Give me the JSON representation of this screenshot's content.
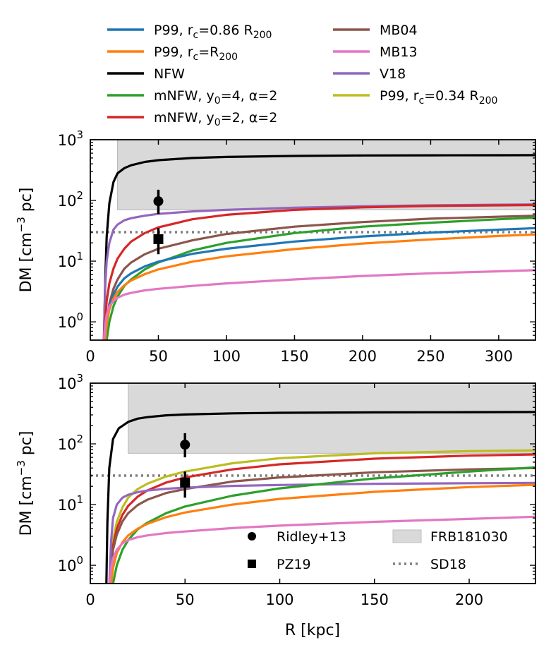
{
  "legend_top": [
    {
      "name": "P99, r_c=0.86 R_200",
      "color": "#1f77b4",
      "base": "P99, r",
      "sub": "c",
      "mid": "=0.86 R",
      "sub2": "200"
    },
    {
      "name": "P99, r_c=R_200",
      "color": "#ff7f0e",
      "base": "P99, r",
      "sub": "c",
      "mid": "=R",
      "sub2": "200"
    },
    {
      "name": "NFW",
      "color": "#000000",
      "base": "NFW"
    },
    {
      "name": "mNFW, y_0=4, α=2",
      "color": "#2ca02c",
      "base": "mNFW, y",
      "sub": "0",
      "mid": "=4, α=2"
    },
    {
      "name": "mNFW, y_0=2, α=2",
      "color": "#d62728",
      "base": "mNFW, y",
      "sub": "0",
      "mid": "=2, α=2"
    },
    {
      "name": "MB04",
      "color": "#8c564b",
      "base": "MB04"
    },
    {
      "name": "MB13",
      "color": "#e377c2",
      "base": "MB13"
    },
    {
      "name": "V18",
      "color": "#9467bd",
      "base": "V18"
    },
    {
      "name": "P99, r_c=0.34 R_200",
      "color": "#bcbd22",
      "base": "P99, r",
      "sub": "c",
      "mid": "=0.34 R",
      "sub2": "200"
    }
  ],
  "legend_bottom": {
    "ridley": "Ridley+13",
    "pz19": "PZ19",
    "frb": "FRB181030",
    "sd18": "SD18"
  },
  "axes": {
    "ylabel_pre": "DM [cm",
    "ylabel_sup": "−3",
    "ylabel_post": " pc]",
    "xlabel": "R [kpc]",
    "y_tick_labels": [
      {
        "base": "10",
        "exp": "0"
      },
      {
        "base": "10",
        "exp": "1"
      },
      {
        "base": "10",
        "exp": "2"
      },
      {
        "base": "10",
        "exp": "3"
      }
    ]
  },
  "chart_data": [
    {
      "type": "line",
      "panel": "top",
      "xlim": [
        0,
        327
      ],
      "ylim": [
        0.5,
        1000
      ],
      "yscale": "log",
      "xticks": [
        0,
        50,
        100,
        150,
        200,
        250,
        300
      ],
      "xlabel": "",
      "ylabel": "DM [cm^-3 pc]",
      "frb_band": {
        "x_start": 20,
        "y_low": 70,
        "y_high": 1000
      },
      "sd18_level": 30,
      "observations": [
        {
          "name": "Ridley+13",
          "marker": "circle",
          "x": 50,
          "y": 97,
          "yerr_low": 60,
          "yerr_high": 150
        },
        {
          "name": "PZ19",
          "marker": "square",
          "x": 50,
          "y": 23,
          "yerr_low": 13,
          "yerr_high": 35
        }
      ],
      "series": [
        {
          "name": "NFW",
          "color": "#000000",
          "x": [
            10,
            11,
            12,
            14,
            17,
            20,
            25,
            30,
            40,
            50,
            75,
            100,
            150,
            200,
            250,
            300,
            327
          ],
          "y": [
            0.5,
            5,
            25,
            90,
            200,
            280,
            340,
            380,
            430,
            460,
            500,
            520,
            540,
            550,
            553,
            555,
            556
          ]
        },
        {
          "name": "V18",
          "color": "#9467bd",
          "x": [
            10,
            11,
            12,
            14,
            17,
            20,
            25,
            30,
            40,
            50,
            75,
            100,
            150,
            200,
            250,
            300,
            327
          ],
          "y": [
            0.5,
            4,
            10,
            20,
            33,
            40,
            47,
            51,
            56,
            60,
            66,
            70,
            76,
            80,
            83,
            85,
            86
          ]
        },
        {
          "name": "mNFW, y_0=2, α=2",
          "color": "#d62728",
          "x": [
            10,
            11,
            12,
            14,
            17,
            20,
            25,
            30,
            40,
            50,
            75,
            100,
            150,
            200,
            250,
            300,
            327
          ],
          "y": [
            0.5,
            1.1,
            2.2,
            4.3,
            7.5,
            11,
            16,
            21,
            29,
            36,
            49,
            58,
            70,
            77,
            81,
            83,
            84
          ]
        },
        {
          "name": "MB04",
          "color": "#8c564b",
          "x": [
            11,
            12,
            14,
            17,
            20,
            25,
            30,
            40,
            50,
            75,
            100,
            150,
            200,
            250,
            300,
            327
          ],
          "y": [
            0.5,
            1,
            2,
            3.5,
            5,
            7.5,
            9.5,
            13,
            16,
            22,
            28,
            37,
            44,
            50,
            54,
            56
          ]
        },
        {
          "name": "mNFW, y_0=4, α=2",
          "color": "#2ca02c",
          "x": [
            12,
            14,
            17,
            20,
            25,
            30,
            40,
            50,
            75,
            100,
            150,
            200,
            250,
            300,
            327
          ],
          "y": [
            0.5,
            1,
            1.8,
            2.6,
            3.9,
            5,
            7.3,
            9.5,
            15,
            20,
            29,
            37,
            43,
            49,
            52
          ]
        },
        {
          "name": "P99, r_c=0.86 R_200",
          "color": "#1f77b4",
          "x": [
            11,
            12,
            14,
            17,
            20,
            25,
            30,
            40,
            50,
            75,
            100,
            150,
            200,
            250,
            300,
            327
          ],
          "y": [
            0.5,
            1,
            1.8,
            2.8,
            3.8,
            5.2,
            6.3,
            8.2,
            9.8,
            13.2,
            16,
            21,
            25.5,
            29.5,
            33,
            35
          ]
        },
        {
          "name": "P99, r_c=R_200",
          "color": "#ff7f0e",
          "x": [
            11,
            12,
            14,
            17,
            20,
            25,
            30,
            40,
            50,
            75,
            100,
            150,
            200,
            250,
            300,
            327
          ],
          "y": [
            0.5,
            0.9,
            1.6,
            2.4,
            3.1,
            4,
            4.8,
            6.1,
            7.3,
            9.8,
            12,
            15.8,
            19.5,
            22.8,
            26,
            27.5
          ]
        },
        {
          "name": "MB13",
          "color": "#e377c2",
          "x": [
            10,
            11,
            12,
            14,
            17,
            20,
            25,
            30,
            40,
            50,
            75,
            100,
            150,
            200,
            250,
            300,
            327
          ],
          "y": [
            0.5,
            0.9,
            1.3,
            1.8,
            2.2,
            2.5,
            2.8,
            3.0,
            3.3,
            3.5,
            3.9,
            4.3,
            5.0,
            5.7,
            6.3,
            6.8,
            7.1
          ]
        }
      ]
    },
    {
      "type": "line",
      "panel": "bottom",
      "xlim": [
        0,
        235
      ],
      "ylim": [
        0.5,
        1000
      ],
      "yscale": "log",
      "xticks": [
        0,
        50,
        100,
        150,
        200
      ],
      "xlabel": "R [kpc]",
      "ylabel": "DM [cm^-3 pc]",
      "frb_band": {
        "x_start": 20,
        "y_low": 70,
        "y_high": 1000
      },
      "sd18_level": 30,
      "observations": [
        {
          "name": "Ridley+13",
          "marker": "circle",
          "x": 50,
          "y": 97,
          "yerr_low": 60,
          "yerr_high": 150
        },
        {
          "name": "PZ19",
          "marker": "square",
          "x": 50,
          "y": 23,
          "yerr_low": 13,
          "yerr_high": 35
        }
      ],
      "series": [
        {
          "name": "NFW",
          "color": "#000000",
          "x": [
            8.5,
            9,
            10,
            12,
            15,
            20,
            25,
            30,
            40,
            50,
            75,
            100,
            150,
            200,
            235
          ],
          "y": [
            0.5,
            5,
            40,
            120,
            180,
            230,
            260,
            275,
            295,
            305,
            318,
            325,
            330,
            333,
            335
          ]
        },
        {
          "name": "P99, r_c=0.34 R_200",
          "color": "#bcbd22",
          "x": [
            10,
            11,
            12,
            14,
            17,
            20,
            25,
            30,
            40,
            50,
            75,
            100,
            150,
            200,
            235
          ],
          "y": [
            0.5,
            1.3,
            2.6,
            5.2,
            9,
            13,
            18,
            22,
            29,
            35,
            48,
            58,
            70,
            76,
            78
          ]
        },
        {
          "name": "mNFW, y_0=2, α=2",
          "color": "#d62728",
          "x": [
            10,
            11,
            12,
            14,
            17,
            20,
            25,
            30,
            40,
            50,
            75,
            100,
            150,
            200,
            235
          ],
          "y": [
            0.5,
            1.1,
            2.1,
            4,
            6.8,
            9.5,
            13.5,
            17,
            23,
            28,
            38,
            46,
            57,
            64,
            67
          ]
        },
        {
          "name": "MB04",
          "color": "#8c564b",
          "x": [
            10,
            11,
            12,
            14,
            17,
            20,
            25,
            30,
            40,
            50,
            75,
            100,
            150,
            200,
            235
          ],
          "y": [
            0.5,
            1,
            1.8,
            3.2,
            5.3,
            7.2,
            9.8,
            12,
            15.5,
            18,
            24,
            28,
            34,
            38,
            40
          ]
        },
        {
          "name": "V18",
          "color": "#9467bd",
          "x": [
            10,
            11,
            12,
            14,
            17,
            20,
            25,
            30,
            40,
            50,
            75,
            100,
            150,
            200,
            235
          ],
          "y": [
            0.5,
            2.5,
            6,
            10,
            13,
            14.5,
            16,
            17,
            18.2,
            19,
            20.3,
            21,
            22,
            22.5,
            22.8
          ]
        },
        {
          "name": "mNFW, y_0=4, α=2",
          "color": "#2ca02c",
          "x": [
            12,
            14,
            17,
            20,
            25,
            30,
            40,
            50,
            75,
            100,
            150,
            200,
            235
          ],
          "y": [
            0.5,
            1,
            1.8,
            2.6,
            3.9,
            5,
            7.2,
            9.3,
            14,
            18.5,
            27,
            35,
            41
          ]
        },
        {
          "name": "P99, r_c=R_200",
          "color": "#ff7f0e",
          "x": [
            11,
            12,
            14,
            17,
            20,
            25,
            30,
            40,
            50,
            75,
            100,
            150,
            200,
            235
          ],
          "y": [
            0.5,
            0.9,
            1.6,
            2.4,
            3.1,
            4,
            4.8,
            6.2,
            7.4,
            10,
            12.4,
            16.2,
            19.4,
            21.2
          ]
        },
        {
          "name": "MB13",
          "color": "#e377c2",
          "x": [
            10,
            11,
            12,
            14,
            17,
            20,
            25,
            30,
            40,
            50,
            75,
            100,
            150,
            200,
            235
          ],
          "y": [
            0.5,
            0.9,
            1.3,
            1.8,
            2.3,
            2.6,
            2.9,
            3.1,
            3.4,
            3.6,
            4.1,
            4.5,
            5.2,
            5.8,
            6.3
          ]
        }
      ]
    }
  ]
}
